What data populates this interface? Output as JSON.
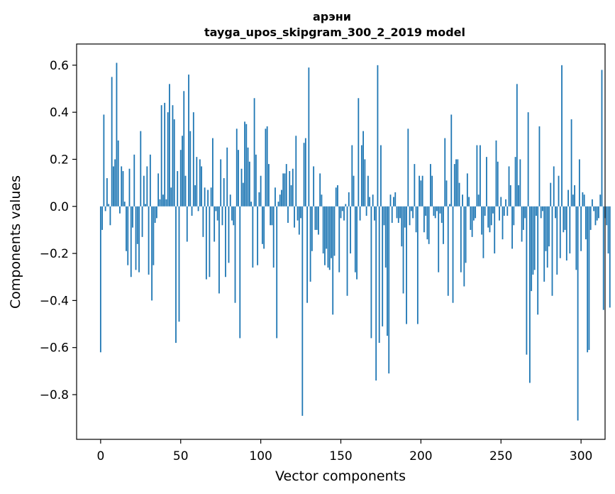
{
  "chart_data": {
    "type": "bar",
    "title": "арэни",
    "subtitle": "tayga_upos_skipgram_300_2_2019 model",
    "xlabel": "Vector components",
    "ylabel": "Components values",
    "xlim": [
      -15,
      315
    ],
    "ylim": [
      -0.99,
      0.69
    ],
    "xticks": [
      0,
      50,
      100,
      150,
      200,
      250,
      300
    ],
    "yticks": [
      -0.8,
      -0.6,
      -0.4,
      -0.2,
      0.0,
      0.2,
      0.4,
      0.6
    ],
    "ytick_labels": [
      "−0.8",
      "−0.6",
      "−0.4",
      "−0.2",
      "0.0",
      "0.2",
      "0.4",
      "0.6"
    ],
    "bar_color": "#1f77b4",
    "values": [
      -0.62,
      -0.1,
      0.39,
      -0.02,
      0.12,
      0.01,
      -0.08,
      0.55,
      0.17,
      0.2,
      0.61,
      0.28,
      -0.03,
      0.17,
      0.15,
      0.02,
      -0.19,
      -0.25,
      0.16,
      -0.3,
      -0.09,
      0.22,
      -0.27,
      -0.16,
      -0.28,
      0.32,
      -0.13,
      0.13,
      0.01,
      0.17,
      -0.29,
      0.22,
      -0.4,
      -0.25,
      -0.07,
      -0.05,
      0.14,
      0.03,
      0.43,
      0.05,
      0.44,
      0.03,
      0.4,
      0.52,
      0.08,
      0.43,
      0.37,
      -0.58,
      0.15,
      -0.49,
      0.24,
      0.3,
      0.49,
      0.13,
      -0.15,
      0.56,
      0.32,
      -0.04,
      0.4,
      0.09,
      0.21,
      -0.02,
      0.2,
      0.17,
      -0.13,
      0.08,
      -0.31,
      0.07,
      -0.3,
      0.08,
      0.29,
      -0.15,
      -0.02,
      -0.06,
      -0.37,
      0.2,
      -0.08,
      0.12,
      -0.3,
      0.25,
      -0.24,
      0.05,
      -0.06,
      -0.08,
      -0.41,
      0.33,
      0.24,
      -0.56,
      0.16,
      0.1,
      0.36,
      0.35,
      0.25,
      0.19,
      0.02,
      -0.26,
      0.46,
      0.22,
      -0.25,
      0.06,
      0.13,
      -0.16,
      -0.18,
      0.33,
      0.34,
      0.18,
      -0.08,
      -0.08,
      -0.26,
      0.08,
      -0.56,
      0.02,
      0.05,
      0.07,
      0.14,
      0.14,
      0.18,
      -0.07,
      0.15,
      0.09,
      0.16,
      -0.09,
      0.3,
      -0.06,
      -0.12,
      -0.05,
      -0.89,
      0.27,
      0.29,
      -0.41,
      0.59,
      -0.32,
      -0.19,
      0.17,
      -0.1,
      -0.1,
      -0.12,
      0.14,
      0.05,
      -0.2,
      -0.25,
      -0.18,
      -0.26,
      -0.27,
      -0.22,
      -0.46,
      -0.21,
      0.08,
      0.09,
      -0.28,
      -0.05,
      -0.02,
      -0.06,
      0.01,
      -0.38,
      0.06,
      -0.2,
      0.26,
      0.13,
      -0.28,
      -0.31,
      0.46,
      -0.06,
      0.26,
      0.32,
      0.2,
      -0.04,
      0.13,
      0.04,
      -0.56,
      0.05,
      -0.06,
      -0.74,
      0.6,
      -0.58,
      0.26,
      -0.51,
      -0.08,
      -0.26,
      -0.55,
      -0.71,
      0.05,
      -0.07,
      0.04,
      0.06,
      -0.05,
      -0.07,
      -0.05,
      -0.17,
      -0.37,
      -0.09,
      -0.5,
      0.33,
      -0.08,
      -0.02,
      -0.05,
      0.18,
      -0.11,
      -0.5,
      0.13,
      0.11,
      0.13,
      -0.11,
      -0.04,
      -0.14,
      -0.16,
      0.18,
      0.13,
      -0.04,
      -0.05,
      -0.02,
      -0.28,
      -0.03,
      -0.07,
      -0.16,
      0.29,
      0.11,
      -0.38,
      0.01,
      0.39,
      -0.41,
      0.18,
      0.2,
      0.2,
      0.1,
      -0.28,
      0.05,
      -0.34,
      -0.24,
      0.14,
      0.04,
      -0.1,
      -0.13,
      -0.06,
      -0.05,
      0.26,
      0.05,
      0.26,
      -0.12,
      -0.22,
      -0.04,
      0.21,
      -0.09,
      -0.11,
      -0.08,
      -0.03,
      -0.2,
      0.28,
      0.19,
      -0.06,
      0.04,
      -0.14,
      -0.04,
      0.03,
      -0.04,
      0.17,
      0.09,
      -0.18,
      -0.08,
      0.21,
      0.52,
      0.09,
      0.2,
      -0.15,
      -0.1,
      -0.05,
      -0.63,
      0.4,
      -0.75,
      -0.36,
      -0.29,
      -0.27,
      -0.04,
      -0.46,
      0.34,
      -0.05,
      -0.02,
      -0.32,
      -0.19,
      -0.26,
      -0.17,
      0.1,
      -0.38,
      0.17,
      -0.05,
      -0.29,
      0.13,
      -0.22,
      0.6,
      -0.11,
      -0.1,
      -0.23,
      0.07,
      -0.2,
      0.37,
      0.05,
      0.09,
      -0.27,
      -0.91,
      0.2,
      -0.19,
      0.06,
      0.05,
      -0.14,
      -0.62,
      -0.61,
      -0.1,
      0.03,
      -0.02,
      -0.08,
      -0.06,
      -0.05,
      0.05,
      0.58,
      -0.44,
      -0.05,
      -0.08,
      -0.2,
      -0.43
    ]
  }
}
